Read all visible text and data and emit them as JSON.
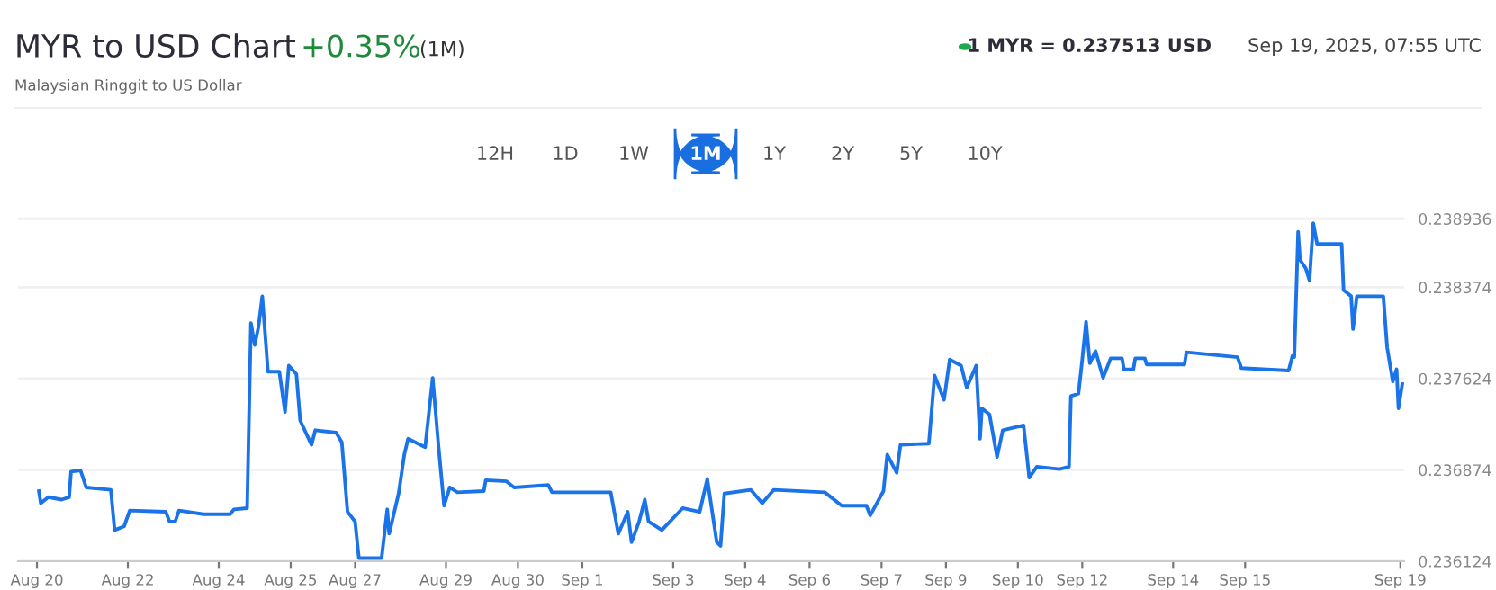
{
  "chart_data": {
    "type": "line",
    "title": "MYR to USD Chart",
    "subtitle": "Malaysian Ringgit to US Dollar",
    "annotations": [
      "+0.35%",
      "(1M)",
      "1 MYR = 0.237513 USD",
      "Sep 19, 2025, 07:55 UTC",
      "12H",
      "1D",
      "1W",
      "1M",
      "1Y",
      "2Y",
      "5Y",
      "10Y"
    ],
    "series": [
      {
        "color": "#1a73e8",
        "x": [
          "2025-08-20T01:00",
          "2025-08-20T02:00",
          "2025-08-20T06:00",
          "2025-08-20T13:00",
          "2025-08-20T17:00",
          "2025-08-20T18:00",
          "2025-08-20T23:00",
          "2025-08-21T02:00",
          "2025-08-21T15:00",
          "2025-08-21T17:00",
          "2025-08-21T22:00",
          "2025-08-22T01:00",
          "2025-08-22T20:00",
          "2025-08-22T22:00",
          "2025-08-23T01:00",
          "2025-08-23T03:00",
          "2025-08-23T16:00",
          "2025-08-24T06:00",
          "2025-08-24T08:00",
          "2025-08-24T15:00",
          "2025-08-24T17:00",
          "2025-08-24T19:00",
          "2025-08-24T21:00",
          "2025-08-24T23:00",
          "2025-08-25T02:00",
          "2025-08-25T08:00",
          "2025-08-25T11:00",
          "2025-08-25T13:00",
          "2025-08-25T17:00",
          "2025-08-25T19:00",
          "2025-08-26T01:00",
          "2025-08-26T03:00",
          "2025-08-26T14:00",
          "2025-08-26T17:00",
          "2025-08-26T20:00",
          "2025-08-27T00:00",
          "2025-08-27T02:00",
          "2025-08-27T14:00",
          "2025-08-27T17:00",
          "2025-08-27T18:00",
          "2025-08-27T23:00",
          "2025-08-28T02:00",
          "2025-08-28T04:00",
          "2025-08-28T13:00",
          "2025-08-28T17:00",
          "2025-08-28T20:00",
          "2025-08-28T23:00",
          "2025-08-29T02:00",
          "2025-08-29T06:00",
          "2025-08-29T20:00",
          "2025-08-29T21:00",
          "2025-08-30T08:00",
          "2025-08-30T12:00",
          "2025-08-31T06:00",
          "2025-08-31T08:00",
          "2025-09-01T15:00",
          "2025-09-01T19:00",
          "2025-09-02T00:00",
          "2025-09-02T02:00",
          "2025-09-02T06:00",
          "2025-09-02T09:00",
          "2025-09-02T11:00",
          "2025-09-02T18:00",
          "2025-09-03T05:00",
          "2025-09-03T14:00",
          "2025-09-03T18:00",
          "2025-09-03T23:00",
          "2025-09-04T01:00",
          "2025-09-04T03:00",
          "2025-09-04T17:00",
          "2025-09-04T23:00",
          "2025-09-05T05:00",
          "2025-09-06T08:00",
          "2025-09-06T17:00",
          "2025-09-07T06:00",
          "2025-09-07T08:00",
          "2025-09-07T15:00",
          "2025-09-07T17:00",
          "2025-09-07T22:00",
          "2025-09-08T00:00",
          "2025-09-08T15:00",
          "2025-09-08T18:00",
          "2025-09-08T23:00",
          "2025-09-09T02:00",
          "2025-09-09T08:00",
          "2025-09-09T11:00",
          "2025-09-09T16:00",
          "2025-09-09T18:00",
          "2025-09-09T19:00",
          "2025-09-09T23:00",
          "2025-09-10T03:00",
          "2025-09-10T06:00",
          "2025-09-10T17:00",
          "2025-09-10T20:00",
          "2025-09-11T00:00",
          "2025-09-11T12:00",
          "2025-09-11T17:00",
          "2025-09-11T18:00",
          "2025-09-11T22:00",
          "2025-09-12T00:00",
          "2025-09-12T02:00",
          "2025-09-12T04:00",
          "2025-09-12T07:00",
          "2025-09-12T11:00",
          "2025-09-12T15:00",
          "2025-09-12T21:00",
          "2025-09-12T22:00",
          "2025-09-13T03:00",
          "2025-09-13T04:00",
          "2025-09-13T09:00",
          "2025-09-13T10:00",
          "2025-09-14T06:00",
          "2025-09-14T07:00",
          "2025-09-15T10:00",
          "2025-09-15T12:00",
          "2025-09-16T13:00",
          "2025-09-16T15:00",
          "2025-09-16T16:00",
          "2025-09-16T18:00",
          "2025-09-16T19:00",
          "2025-09-16T22:00",
          "2025-09-17T00:00",
          "2025-09-17T02:00",
          "2025-09-17T04:00",
          "2025-09-17T17:00",
          "2025-09-17T18:00",
          "2025-09-17T22:00",
          "2025-09-17T23:00",
          "2025-09-18T01:00",
          "2025-09-18T15:00",
          "2025-09-18T17:00",
          "2025-09-18T20:00",
          "2025-09-18T22:00",
          "2025-09-18T23:00",
          "2025-09-19T01:00"
        ],
        "values": [
          0.2367,
          0.2366,
          0.23665,
          0.23663,
          0.23665,
          0.23686,
          0.23687,
          0.23673,
          0.23671,
          0.23638,
          0.23641,
          0.23654,
          0.23653,
          0.23645,
          0.23645,
          0.23654,
          0.23651,
          0.23651,
          0.23655,
          0.23656,
          0.23808,
          0.2379,
          0.23805,
          0.2383,
          0.23768,
          0.23768,
          0.23735,
          0.23773,
          0.23766,
          0.23728,
          0.23708,
          0.2372,
          0.23718,
          0.2371,
          0.23653,
          0.23645,
          0.23615,
          0.23615,
          0.23655,
          0.23635,
          0.23668,
          0.237,
          0.23713,
          0.23706,
          0.23763,
          0.23708,
          0.23658,
          0.23673,
          0.23669,
          0.2367,
          0.23679,
          0.23678,
          0.23673,
          0.23675,
          0.23669,
          0.23669,
          0.23635,
          0.23653,
          0.23628,
          0.23645,
          0.23663,
          0.23645,
          0.23638,
          0.23656,
          0.23653,
          0.2368,
          0.23628,
          0.23625,
          0.23668,
          0.23671,
          0.2366,
          0.23671,
          0.23669,
          0.23658,
          0.23658,
          0.2365,
          0.2367,
          0.237,
          0.23685,
          0.23708,
          0.23709,
          0.23765,
          0.23745,
          0.23778,
          0.23773,
          0.23755,
          0.23773,
          0.23713,
          0.23738,
          0.23733,
          0.23698,
          0.2372,
          0.23724,
          0.23681,
          0.2369,
          0.23688,
          0.2369,
          0.23748,
          0.2375,
          0.23778,
          0.23809,
          0.23775,
          0.23785,
          0.23763,
          0.23779,
          0.23779,
          0.2377,
          0.2377,
          0.23779,
          0.23779,
          0.23774,
          0.23774,
          0.23784,
          0.2378,
          0.23771,
          0.23769,
          0.23781,
          0.2378,
          0.23883,
          0.2386,
          0.23853,
          0.23843,
          0.2389,
          0.23873,
          0.23873,
          0.23835,
          0.2383,
          0.23803,
          0.2383,
          0.2383,
          0.23788,
          0.2376,
          0.2377,
          0.23738,
          0.23758
        ]
      }
    ],
    "xlim": [
      "2025-08-19T14:00",
      "2025-09-19T02:00"
    ],
    "xticks": [
      {
        "value": "2025-08-20T00:00",
        "label": "Aug 20"
      },
      {
        "value": "2025-08-22T00:00",
        "label": "Aug 22"
      },
      {
        "value": "2025-08-24T00:00",
        "label": "Aug 24"
      },
      {
        "value": "2025-08-25T14:00",
        "label": "Aug 25"
      },
      {
        "value": "2025-08-27T00:00",
        "label": "Aug 27"
      },
      {
        "value": "2025-08-29T00:00",
        "label": "Aug 29"
      },
      {
        "value": "2025-08-30T14:00",
        "label": "Aug 30"
      },
      {
        "value": "2025-09-01T00:00",
        "label": "Sep 1"
      },
      {
        "value": "2025-09-03T00:00",
        "label": "Sep 3"
      },
      {
        "value": "2025-09-04T14:00",
        "label": "Sep 4"
      },
      {
        "value": "2025-09-06T00:00",
        "label": "Sep 6"
      },
      {
        "value": "2025-09-07T14:00",
        "label": "Sep 7"
      },
      {
        "value": "2025-09-09T00:00",
        "label": "Sep 9"
      },
      {
        "value": "2025-09-10T14:00",
        "label": "Sep 10"
      },
      {
        "value": "2025-09-12T00:00",
        "label": "Sep 12"
      },
      {
        "value": "2025-09-14T00:00",
        "label": "Sep 14"
      },
      {
        "value": "2025-09-15T14:00",
        "label": "Sep 15"
      },
      {
        "value": "2025-09-19T00:00",
        "label": "Sep 19"
      }
    ],
    "ylim": [
      0.236124,
      0.23896
    ],
    "yticks": [
      0.236124,
      0.236874,
      0.237624,
      0.238374,
      0.238936
    ],
    "grid": "y",
    "legend": false,
    "marker": "none",
    "line_style": "solid"
  }
}
